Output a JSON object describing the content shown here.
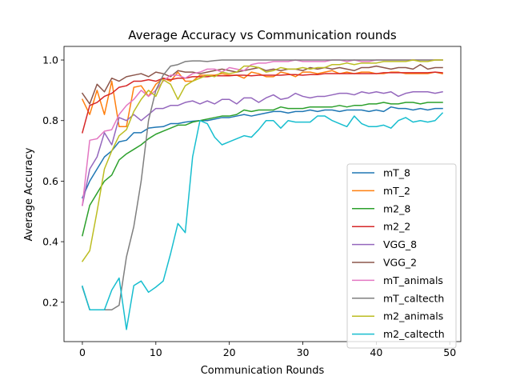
{
  "chart_data": {
    "type": "line",
    "title": "Average Accuracy vs Communication rounds",
    "xlabel": "Communication Rounds",
    "ylabel": "Average Accuracy",
    "xlim": [
      -2.5,
      51.5
    ],
    "ylim": [
      0.07,
      1.045
    ],
    "xticks": [
      0,
      10,
      20,
      30,
      40,
      50
    ],
    "yticks": [
      0.2,
      0.4,
      0.6,
      0.8,
      1.0
    ],
    "ytick_labels": [
      "0.2",
      "0.4",
      "0.6",
      "0.8",
      "1.0"
    ],
    "grid": false,
    "legend_position": "lower-right",
    "series": [
      {
        "name": "mT_8",
        "color": "#1f77b4",
        "values": [
          0.545,
          0.6,
          0.64,
          0.68,
          0.7,
          0.73,
          0.735,
          0.76,
          0.76,
          0.775,
          0.778,
          0.78,
          0.79,
          0.79,
          0.795,
          0.798,
          0.8,
          0.8,
          0.805,
          0.81,
          0.81,
          0.815,
          0.82,
          0.815,
          0.82,
          0.825,
          0.83,
          0.83,
          0.825,
          0.83,
          0.83,
          0.835,
          0.83,
          0.835,
          0.835,
          0.83,
          0.835,
          0.835,
          0.835,
          0.83,
          0.835,
          0.83,
          0.845,
          0.84,
          0.84,
          0.835,
          0.84,
          0.835,
          0.84,
          0.84
        ]
      },
      {
        "name": "mT_2",
        "color": "#ff7f0e",
        "values": [
          0.87,
          0.82,
          0.9,
          0.82,
          0.93,
          0.78,
          0.78,
          0.91,
          0.915,
          0.88,
          0.92,
          0.94,
          0.93,
          0.96,
          0.93,
          0.93,
          0.95,
          0.95,
          0.95,
          0.955,
          0.95,
          0.95,
          0.94,
          0.96,
          0.955,
          0.945,
          0.945,
          0.96,
          0.955,
          0.945,
          0.96,
          0.96,
          0.955,
          0.96,
          0.965,
          0.955,
          0.96,
          0.955,
          0.96,
          0.96,
          0.955,
          0.955,
          0.96,
          0.96,
          0.955,
          0.955,
          0.955,
          0.955,
          0.96,
          0.955
        ]
      },
      {
        "name": "m2_8",
        "color": "#2ca02c",
        "values": [
          0.42,
          0.52,
          0.56,
          0.6,
          0.62,
          0.67,
          0.69,
          0.705,
          0.72,
          0.74,
          0.755,
          0.765,
          0.775,
          0.785,
          0.785,
          0.795,
          0.8,
          0.805,
          0.81,
          0.815,
          0.815,
          0.82,
          0.835,
          0.83,
          0.835,
          0.835,
          0.835,
          0.845,
          0.84,
          0.84,
          0.84,
          0.845,
          0.845,
          0.845,
          0.845,
          0.85,
          0.845,
          0.85,
          0.85,
          0.855,
          0.855,
          0.86,
          0.855,
          0.855,
          0.86,
          0.86,
          0.855,
          0.86,
          0.86,
          0.86
        ]
      },
      {
        "name": "m2_2",
        "color": "#d62728",
        "values": [
          0.76,
          0.85,
          0.86,
          0.88,
          0.89,
          0.91,
          0.915,
          0.93,
          0.93,
          0.935,
          0.93,
          0.94,
          0.935,
          0.94,
          0.94,
          0.945,
          0.945,
          0.945,
          0.948,
          0.948,
          0.948,
          0.95,
          0.95,
          0.948,
          0.95,
          0.95,
          0.95,
          0.95,
          0.952,
          0.952,
          0.95,
          0.952,
          0.952,
          0.955,
          0.955,
          0.955,
          0.955,
          0.955,
          0.955,
          0.955,
          0.955,
          0.958,
          0.958,
          0.958,
          0.958,
          0.958,
          0.958,
          0.958,
          0.96,
          0.958
        ]
      },
      {
        "name": "VGG_8",
        "color": "#9467bd",
        "values": [
          0.52,
          0.64,
          0.68,
          0.76,
          0.72,
          0.81,
          0.8,
          0.82,
          0.8,
          0.82,
          0.84,
          0.84,
          0.85,
          0.85,
          0.86,
          0.865,
          0.855,
          0.865,
          0.855,
          0.87,
          0.87,
          0.855,
          0.875,
          0.875,
          0.86,
          0.875,
          0.885,
          0.87,
          0.875,
          0.89,
          0.88,
          0.875,
          0.88,
          0.88,
          0.885,
          0.89,
          0.89,
          0.885,
          0.895,
          0.89,
          0.895,
          0.89,
          0.895,
          0.88,
          0.89,
          0.895,
          0.895,
          0.895,
          0.89,
          0.895
        ]
      },
      {
        "name": "VGG_2",
        "color": "#8c564b",
        "values": [
          0.89,
          0.855,
          0.92,
          0.895,
          0.94,
          0.93,
          0.945,
          0.95,
          0.955,
          0.945,
          0.96,
          0.955,
          0.945,
          0.965,
          0.96,
          0.96,
          0.955,
          0.96,
          0.965,
          0.97,
          0.965,
          0.96,
          0.965,
          0.97,
          0.975,
          0.965,
          0.97,
          0.965,
          0.97,
          0.97,
          0.965,
          0.975,
          0.97,
          0.975,
          0.97,
          0.975,
          0.97,
          0.965,
          0.975,
          0.975,
          0.98,
          0.975,
          0.97,
          0.975,
          0.975,
          0.97,
          0.985,
          0.97,
          0.975,
          0.975
        ]
      },
      {
        "name": "mT_animals",
        "color": "#e377c2",
        "values": [
          0.52,
          0.735,
          0.74,
          0.765,
          0.77,
          0.82,
          0.85,
          0.87,
          0.9,
          0.88,
          0.9,
          0.93,
          0.95,
          0.95,
          0.94,
          0.955,
          0.96,
          0.97,
          0.97,
          0.96,
          0.975,
          0.97,
          0.965,
          0.985,
          0.99,
          0.99,
          0.995,
          0.995,
          0.995,
          1.0,
          0.995,
          0.995,
          0.995,
          0.995,
          1.0,
          1.0,
          0.995,
          1.0,
          0.995,
          0.995,
          1.0,
          1.0,
          1.0,
          1.0,
          1.0,
          1.0,
          1.0,
          1.0,
          1.0,
          1.0
        ]
      },
      {
        "name": "mT_caltecth",
        "color": "#7f7f7f",
        "values": [
          0.25,
          0.175,
          0.175,
          0.175,
          0.175,
          0.19,
          0.35,
          0.45,
          0.6,
          0.8,
          0.9,
          0.95,
          0.98,
          0.985,
          0.995,
          0.997,
          0.997,
          0.995,
          0.998,
          1.0,
          1.0,
          1.0,
          1.0,
          1.0,
          1.0,
          1.0,
          1.0,
          1.0,
          1.0,
          1.0,
          1.0,
          1.0,
          1.0,
          1.0,
          1.0,
          1.0,
          1.0,
          1.0,
          1.0,
          1.0,
          1.0,
          1.0,
          1.0,
          1.0,
          1.0,
          1.0,
          1.0,
          1.0,
          1.0,
          1.0
        ]
      },
      {
        "name": "m2_animals",
        "color": "#bcbd22",
        "values": [
          0.335,
          0.37,
          0.5,
          0.64,
          0.7,
          0.75,
          0.77,
          0.83,
          0.87,
          0.9,
          0.88,
          0.935,
          0.92,
          0.87,
          0.915,
          0.93,
          0.94,
          0.95,
          0.945,
          0.96,
          0.955,
          0.96,
          0.98,
          0.98,
          0.975,
          0.96,
          0.965,
          0.975,
          0.97,
          0.97,
          0.975,
          0.97,
          0.975,
          0.975,
          0.985,
          0.985,
          0.99,
          0.985,
          0.99,
          0.99,
          0.99,
          0.995,
          0.995,
          0.995,
          0.995,
          1.0,
          0.995,
          0.995,
          1.0,
          1.0
        ]
      },
      {
        "name": "m2_caltecth",
        "color": "#17becf",
        "values": [
          0.253,
          0.175,
          0.175,
          0.175,
          0.24,
          0.28,
          0.11,
          0.255,
          0.27,
          0.233,
          0.25,
          0.27,
          0.36,
          0.46,
          0.43,
          0.68,
          0.8,
          0.79,
          0.745,
          0.72,
          0.73,
          0.74,
          0.75,
          0.745,
          0.77,
          0.8,
          0.8,
          0.775,
          0.8,
          0.795,
          0.795,
          0.795,
          0.815,
          0.815,
          0.8,
          0.79,
          0.78,
          0.815,
          0.79,
          0.78,
          0.78,
          0.785,
          0.775,
          0.8,
          0.81,
          0.795,
          0.8,
          0.795,
          0.8,
          0.825
        ]
      }
    ]
  }
}
